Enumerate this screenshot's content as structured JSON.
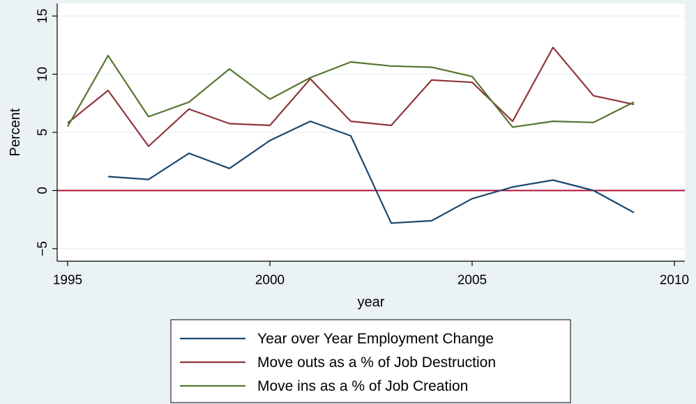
{
  "chart_data": {
    "type": "line",
    "title": "",
    "xlabel": "year",
    "ylabel": "Percent",
    "xlim": [
      1995,
      2010
    ],
    "ylim": [
      -6,
      16
    ],
    "x_ticks": [
      1995,
      2000,
      2005,
      2010
    ],
    "y_ticks": [
      -5,
      0,
      5,
      10,
      15
    ],
    "grid": true,
    "reference_line": {
      "y": 0,
      "color": "#b0103a"
    },
    "legend_position": "bottom",
    "series": [
      {
        "name": "Year over Year Employment Change",
        "color": "#1a476f",
        "points": [
          [
            1996,
            1.2
          ],
          [
            1997,
            0.95
          ],
          [
            1998,
            3.2
          ],
          [
            1999,
            1.9
          ],
          [
            2000,
            4.3
          ],
          [
            2001,
            5.95
          ],
          [
            2002,
            4.7
          ],
          [
            2003,
            -2.8
          ],
          [
            2004,
            -2.6
          ],
          [
            2005,
            -0.7
          ],
          [
            2006,
            0.3
          ],
          [
            2007,
            0.9
          ],
          [
            2008,
            0.0
          ],
          [
            2009,
            -1.9
          ]
        ]
      },
      {
        "name": "Move outs as a % of Job Destruction",
        "color": "#90353b",
        "points": [
          [
            1995,
            5.8
          ],
          [
            1996,
            8.6
          ],
          [
            1997,
            3.8
          ],
          [
            1998,
            7.0
          ],
          [
            1999,
            5.75
          ],
          [
            2000,
            5.6
          ],
          [
            2001,
            9.6
          ],
          [
            2002,
            5.95
          ],
          [
            2003,
            5.6
          ],
          [
            2004,
            9.5
          ],
          [
            2005,
            9.3
          ],
          [
            2006,
            5.95
          ],
          [
            2007,
            12.3
          ],
          [
            2008,
            8.15
          ],
          [
            2009,
            7.4
          ]
        ]
      },
      {
        "name": "Move ins as a % of Job Creation",
        "color": "#55752f",
        "points": [
          [
            1995,
            5.5
          ],
          [
            1996,
            11.6
          ],
          [
            1997,
            6.35
          ],
          [
            1998,
            7.6
          ],
          [
            1999,
            10.45
          ],
          [
            2000,
            7.85
          ],
          [
            2001,
            9.7
          ],
          [
            2002,
            11.05
          ],
          [
            2003,
            10.7
          ],
          [
            2004,
            10.6
          ],
          [
            2005,
            9.8
          ],
          [
            2006,
            5.45
          ],
          [
            2007,
            5.95
          ],
          [
            2008,
            5.85
          ],
          [
            2009,
            7.6
          ]
        ]
      }
    ]
  }
}
